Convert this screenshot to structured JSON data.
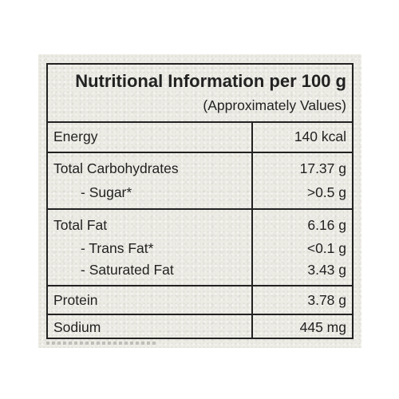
{
  "title": "Nutritional Information per 100 g",
  "subtitle": "(Approximately Values)",
  "rows": [
    {
      "label": "Energy",
      "value": "140 kcal"
    },
    {
      "label": "Total Carbohydrates",
      "value": "17.37 g"
    },
    {
      "label": "- Sugar*",
      "value": ">0.5 g"
    },
    {
      "label": "Total Fat",
      "value": "6.16 g"
    },
    {
      "label": "- Trans Fat*",
      "value": "<0.1 g"
    },
    {
      "label": "- Saturated Fat",
      "value": "3.43 g"
    },
    {
      "label": "Protein",
      "value": "3.78 g"
    },
    {
      "label": "Sodium",
      "value": "445 mg"
    }
  ]
}
